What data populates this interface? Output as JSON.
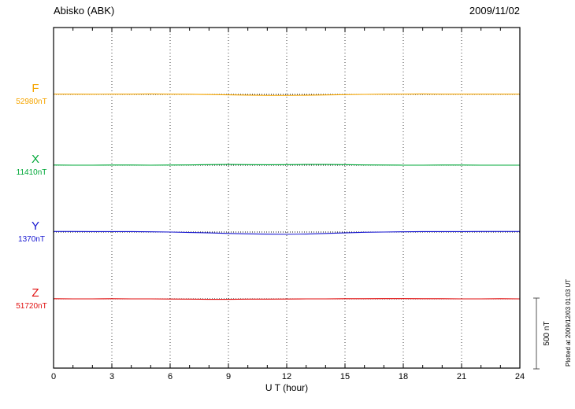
{
  "header": {
    "station": "Abisko (ABK)",
    "date": "2009/11/02"
  },
  "axis": {
    "xlabel": "U T (hour)"
  },
  "scalebar": {
    "label": "500 nT",
    "value_nT": 500
  },
  "footer": {
    "plotted_at": "Plotted at 2009/12/03 01:03 UT"
  },
  "chart_data": {
    "type": "line",
    "title": "Abisko (ABK) magnetogram 2009/11/02",
    "xlabel": "U T (hour)",
    "xlim": [
      0,
      24
    ],
    "x_ticks": [
      0,
      3,
      6,
      9,
      12,
      15,
      18,
      21,
      24
    ],
    "x_hours": [
      0,
      1,
      2,
      3,
      4,
      5,
      6,
      7,
      8,
      9,
      10,
      11,
      12,
      13,
      14,
      15,
      16,
      17,
      18,
      19,
      20,
      21,
      22,
      23,
      24
    ],
    "scale_bar_nT": 500,
    "grid": "dotted-vertical-every-3h",
    "series": [
      {
        "name": "F",
        "baseline_label": "52980nT",
        "baseline_nT": 52980,
        "color": "#F5A500",
        "offsets_nT": [
          2,
          2,
          1,
          2,
          2,
          3,
          2,
          1,
          -1,
          -3,
          -5,
          -7,
          -7,
          -6,
          -4,
          -2,
          0,
          2,
          2,
          3,
          2,
          2,
          2,
          2,
          2
        ]
      },
      {
        "name": "X",
        "baseline_label": "11410nT",
        "baseline_nT": 11410,
        "color": "#00A838",
        "offsets_nT": [
          1,
          0,
          0,
          1,
          1,
          0,
          1,
          2,
          4,
          5,
          4,
          3,
          4,
          5,
          5,
          4,
          2,
          1,
          0,
          0,
          1,
          1,
          0,
          0,
          0
        ]
      },
      {
        "name": "Y",
        "baseline_label": "1370nT",
        "baseline_nT": 1370,
        "color": "#1515D0",
        "offsets_nT": [
          4,
          4,
          3,
          3,
          3,
          2,
          0,
          -3,
          -6,
          -10,
          -13,
          -15,
          -16,
          -14,
          -10,
          -6,
          -2,
          0,
          2,
          3,
          3,
          3,
          4,
          4,
          4
        ]
      },
      {
        "name": "Z",
        "baseline_label": "51720nT",
        "baseline_nT": 51720,
        "color": "#E01010",
        "offsets_nT": [
          1,
          0,
          0,
          1,
          0,
          0,
          -1,
          -2,
          -3,
          -3,
          -2,
          -2,
          -1,
          0,
          0,
          1,
          1,
          2,
          2,
          1,
          1,
          0,
          0,
          1,
          0
        ]
      }
    ]
  }
}
